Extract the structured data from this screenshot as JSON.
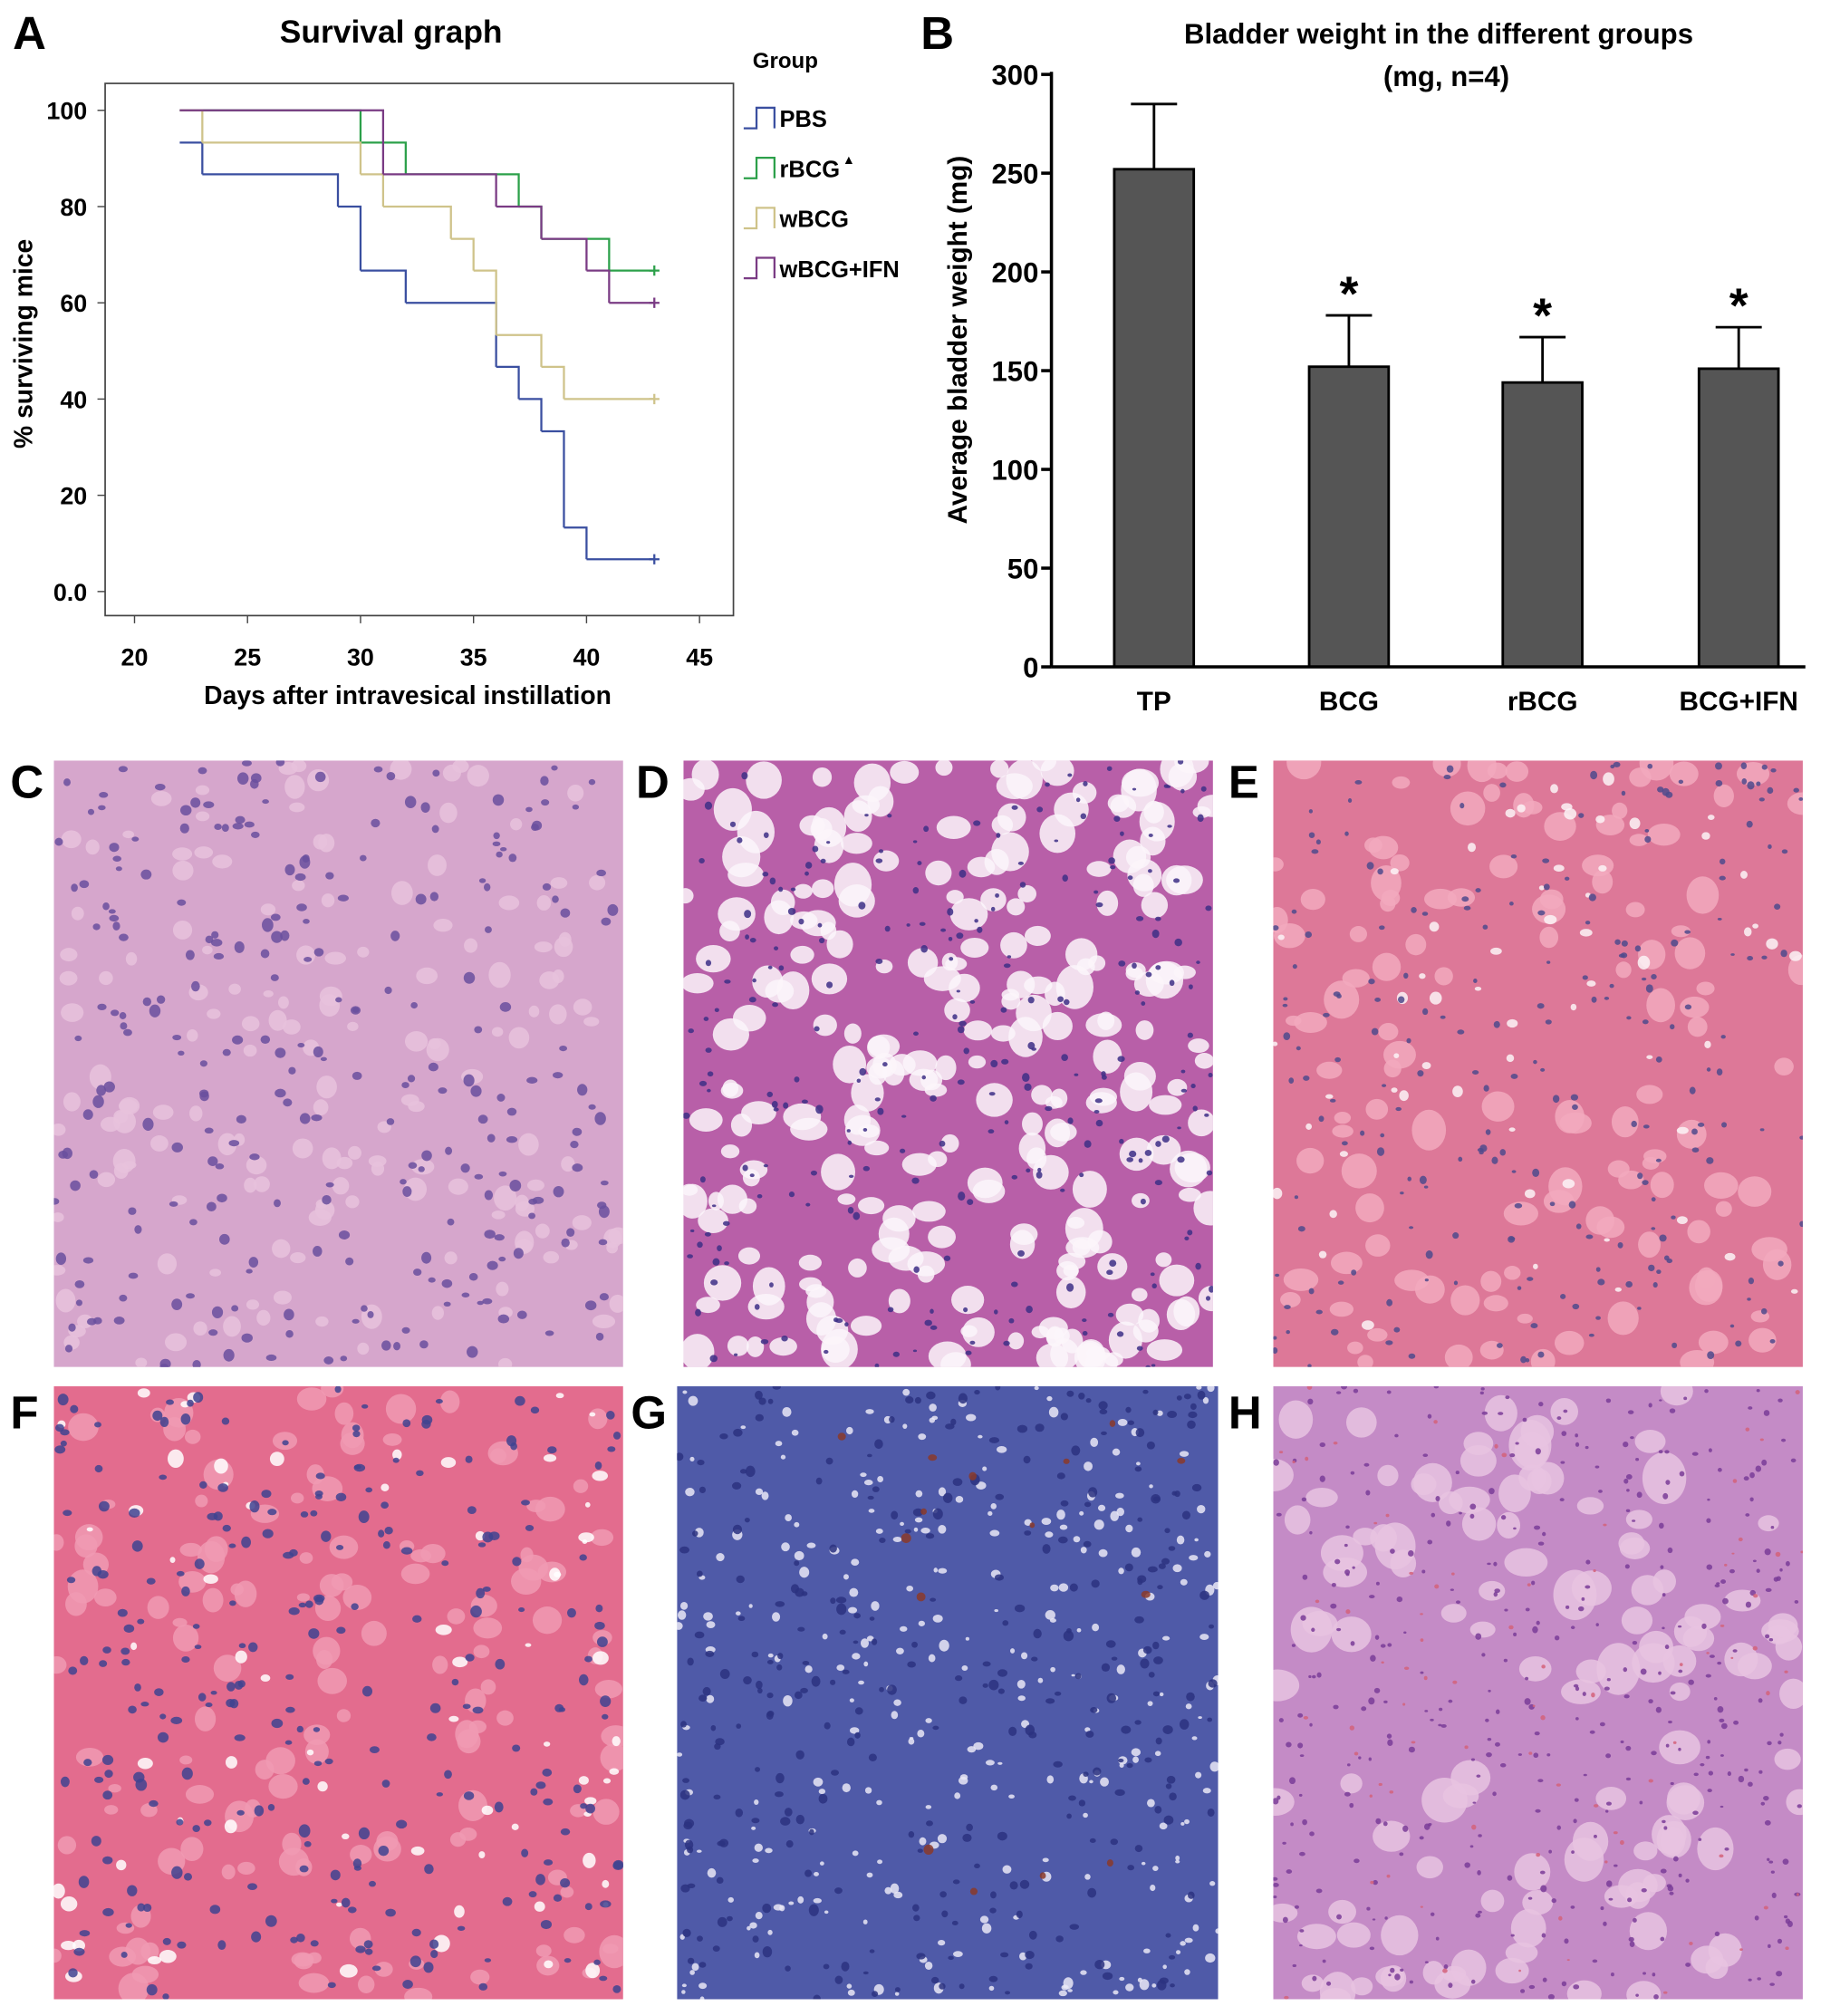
{
  "chart_data": [
    {
      "type": "step",
      "panel_label": "A",
      "title": "Survival graph",
      "xlabel": "Days after intravesical instillation",
      "ylabel": "% surviving mice",
      "legend_title": "Group",
      "xlim": [
        18.7,
        46.5
      ],
      "xticks": [
        20,
        25,
        30,
        35,
        40,
        45
      ],
      "ylim": [
        -5,
        105.6
      ],
      "yticks": [
        {
          "value": 0,
          "label": "0.0"
        },
        20,
        40,
        60,
        80,
        100
      ],
      "series": [
        {
          "name": "PBS",
          "color": "#3a4fa0",
          "x": [
            22,
            23,
            29,
            30,
            32,
            36,
            37,
            38,
            39,
            40,
            43
          ],
          "values": [
            93.3,
            86.7,
            80,
            66.7,
            60,
            46.7,
            40,
            33.3,
            13.3,
            6.7,
            6.7
          ]
        },
        {
          "name": "rBCG",
          "superscript": "▲",
          "color": "#2ca04a",
          "x": [
            22,
            30,
            32,
            37,
            38,
            41,
            43
          ],
          "values": [
            100,
            93.3,
            86.7,
            80,
            73.3,
            66.7,
            66.7
          ]
        },
        {
          "name": "wBCG",
          "color": "#cfc38a",
          "x": [
            22,
            23,
            30,
            31,
            34,
            35,
            36,
            38,
            39,
            43
          ],
          "values": [
            100,
            93.3,
            86.7,
            80,
            73.3,
            66.7,
            53.3,
            46.7,
            40,
            40
          ]
        },
        {
          "name": "wBCG+IFN",
          "color": "#7a3b84",
          "x": [
            22,
            31,
            36,
            38,
            40,
            41,
            43
          ],
          "values": [
            100,
            86.7,
            80,
            73.3,
            66.7,
            60,
            60
          ]
        }
      ]
    },
    {
      "type": "bar",
      "panel_label": "B",
      "title": "Bladder weight in the different groups",
      "subtitle": "(mg, n=4)",
      "ylabel": "Average bladder weight (mg)",
      "categories": [
        "TP",
        "BCG",
        "rBCG",
        "BCG+IFN"
      ],
      "values": [
        252,
        152,
        144,
        151
      ],
      "errors": [
        33,
        26,
        23,
        21
      ],
      "annotations": [
        null,
        "*",
        "*",
        "*"
      ],
      "color": "#555555",
      "ylim": [
        0,
        300
      ],
      "yticks": [
        0,
        50,
        100,
        150,
        200,
        250,
        300
      ]
    }
  ],
  "panels": [
    {
      "label": "C"
    },
    {
      "label": "D"
    },
    {
      "label": "E"
    },
    {
      "label": "F"
    },
    {
      "label": "G"
    },
    {
      "label": "H"
    }
  ]
}
